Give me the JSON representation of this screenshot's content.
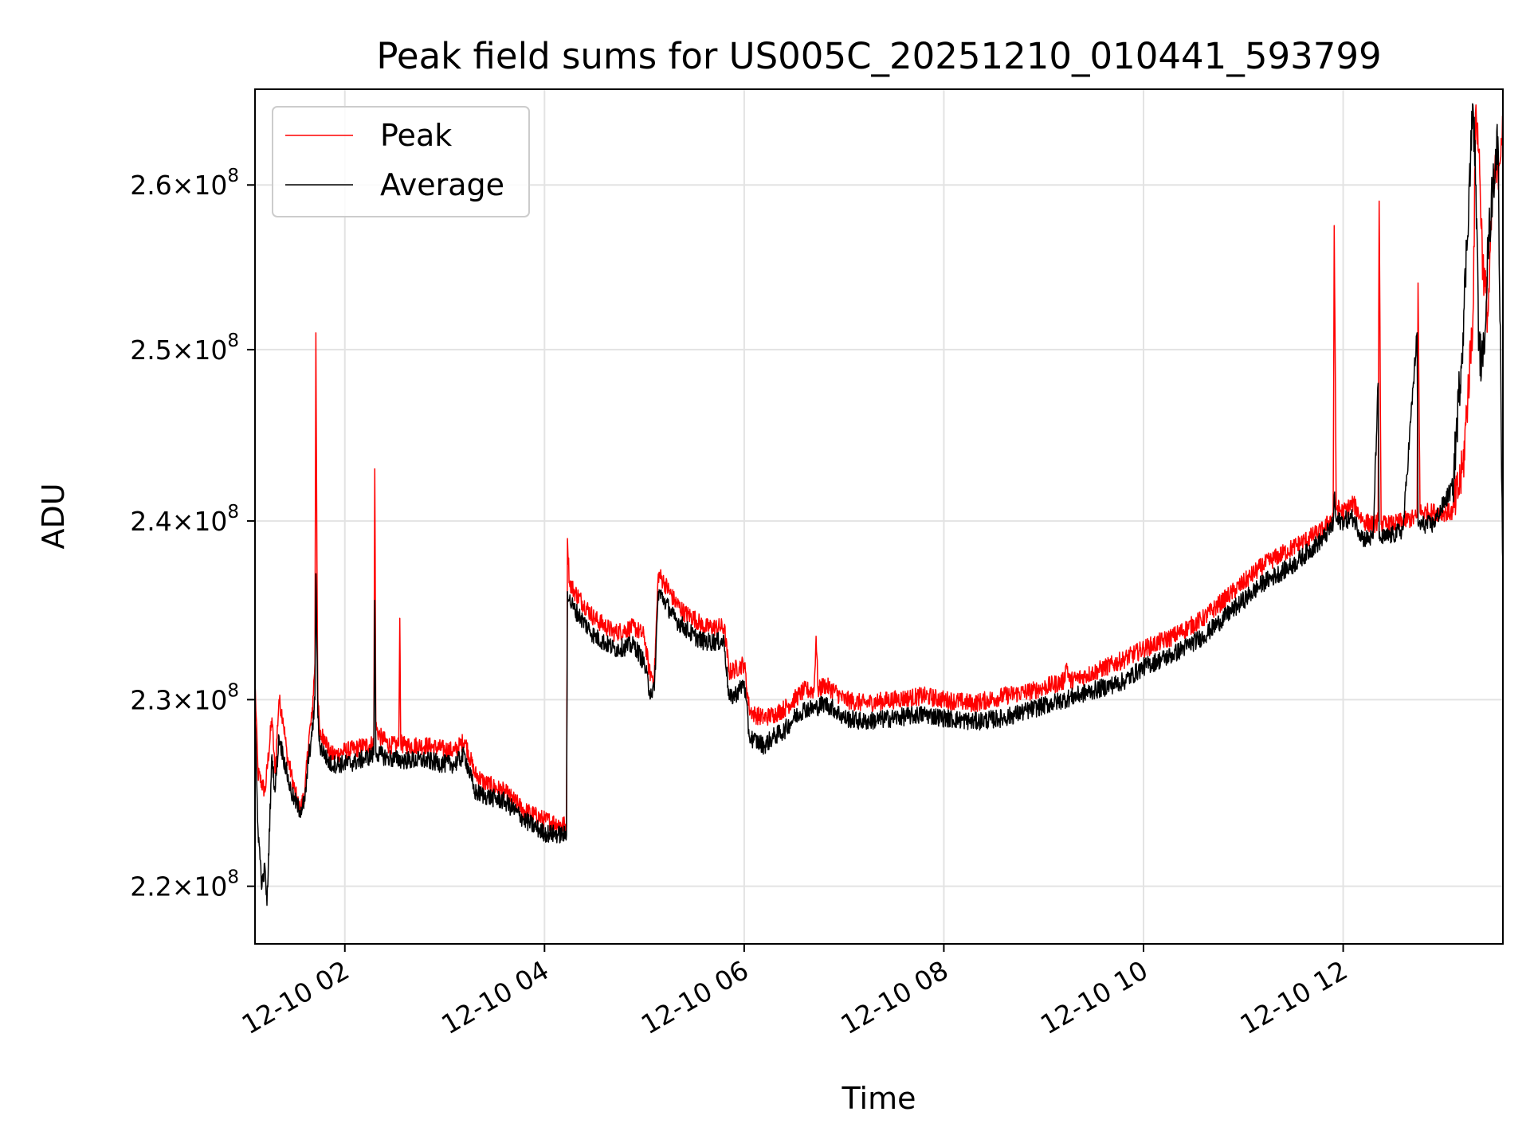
{
  "chart_data": {
    "type": "line",
    "title": "Peak field sums for US005C_20251210_010441_593799",
    "xlabel": "Time",
    "ylabel": "ADU",
    "scale_y": "log",
    "xlim": [
      1.1,
      13.6
    ],
    "ylim": [
      217000000.0,
      266000000.0
    ],
    "grid": true,
    "legend_position": "upper-left",
    "x_ticks": [
      {
        "value": 2,
        "label": "12-10 02"
      },
      {
        "value": 4,
        "label": "12-10 04"
      },
      {
        "value": 6,
        "label": "12-10 06"
      },
      {
        "value": 8,
        "label": "12-10 08"
      },
      {
        "value": 10,
        "label": "12-10 10"
      },
      {
        "value": 12,
        "label": "12-10 12"
      }
    ],
    "y_ticks": [
      {
        "value": 220000000.0,
        "mantissa": "2.2",
        "exp": "8"
      },
      {
        "value": 230000000.0,
        "mantissa": "2.3",
        "exp": "8"
      },
      {
        "value": 240000000.0,
        "mantissa": "2.4",
        "exp": "8"
      },
      {
        "value": 250000000.0,
        "mantissa": "2.5",
        "exp": "8"
      },
      {
        "value": 260000000.0,
        "mantissa": "2.6",
        "exp": "8"
      }
    ],
    "tick_multiplier": "×10",
    "series": [
      {
        "name": "Peak",
        "color": "#ff0000",
        "x": [
          1.1,
          1.13,
          1.2,
          1.27,
          1.3,
          1.34,
          1.38,
          1.42,
          1.46,
          1.5,
          1.55,
          1.6,
          1.64,
          1.67,
          1.7,
          1.71,
          1.72,
          1.73,
          1.75,
          1.8,
          1.85,
          1.9,
          2.0,
          2.1,
          2.2,
          2.29,
          2.3,
          2.31,
          2.35,
          2.45,
          2.54,
          2.55,
          2.56,
          2.6,
          2.8,
          3.0,
          3.1,
          3.2,
          3.3,
          3.4,
          3.6,
          3.8,
          4.0,
          4.22,
          4.23,
          4.25,
          4.3,
          4.5,
          4.7,
          4.9,
          5.0,
          5.05,
          5.1,
          5.14,
          5.2,
          5.3,
          5.4,
          5.5,
          5.6,
          5.8,
          5.85,
          5.95,
          6.0,
          6.05,
          6.1,
          6.2,
          6.3,
          6.4,
          6.5,
          6.6,
          6.7,
          6.72,
          6.74,
          6.8,
          6.9,
          7.0,
          7.2,
          7.5,
          7.8,
          8.0,
          8.3,
          8.6,
          8.9,
          9.2,
          9.23,
          9.26,
          9.5,
          9.8,
          10.0,
          10.3,
          10.6,
          10.9,
          11.2,
          11.5,
          11.8,
          11.9,
          11.91,
          11.93,
          12.0,
          12.1,
          12.2,
          12.3,
          12.35,
          12.36,
          12.38,
          12.5,
          12.6,
          12.74,
          12.75,
          12.77,
          12.9,
          13.1,
          13.2,
          13.3,
          13.33,
          13.36,
          13.4,
          13.45,
          13.5,
          13.55,
          13.6
        ],
        "values": [
          231000000.0,
          226000000.0,
          225000000.0,
          229000000.0,
          226000000.0,
          230000000.0,
          229000000.0,
          227000000.0,
          226000000.0,
          225000000.0,
          224000000.0,
          225000000.0,
          228000000.0,
          229000000.0,
          232000000.0,
          251000000.0,
          238000000.0,
          230000000.0,
          228000000.0,
          228000000.0,
          227000000.0,
          227000000.0,
          227200000.0,
          227300000.0,
          227500000.0,
          227600000.0,
          243000000.0,
          228500000.0,
          228000000.0,
          227500000.0,
          227500000.0,
          234500000.0,
          227600000.0,
          227500000.0,
          227500000.0,
          227300000.0,
          227200000.0,
          227800000.0,
          226000000.0,
          225500000.0,
          225000000.0,
          224000000.0,
          223500000.0,
          223200000.0,
          239000000.0,
          236500000.0,
          236000000.0,
          234500000.0,
          233700000.0,
          234000000.0,
          233500000.0,
          231500000.0,
          231200000.0,
          237000000.0,
          236500000.0,
          235500000.0,
          234800000.0,
          234500000.0,
          234000000.0,
          234000000.0,
          231500000.0,
          231800000.0,
          232000000.0,
          229500000.0,
          229200000.0,
          229000000.0,
          229200000.0,
          229500000.0,
          230000000.0,
          230500000.0,
          230500000.0,
          233500000.0,
          230500000.0,
          230800000.0,
          230500000.0,
          230000000.0,
          229800000.0,
          230000000.0,
          230200000.0,
          230000000.0,
          229800000.0,
          230200000.0,
          230500000.0,
          231000000.0,
          232000000.0,
          231000000.0,
          231500000.0,
          232200000.0,
          232800000.0,
          233500000.0,
          234500000.0,
          236000000.0,
          237500000.0,
          238500000.0,
          239500000.0,
          240300000.0,
          257500000.0,
          240800000.0,
          240500000.0,
          241000000.0,
          240000000.0,
          239800000.0,
          240000000.0,
          259000000.0,
          239800000.0,
          239800000.0,
          240000000.0,
          240200000.0,
          254000000.0,
          240500000.0,
          240500000.0,
          240500000.0,
          243000000.0,
          252000000.0,
          265000000.0,
          262000000.0,
          255000000.0,
          252000000.0,
          260000000.0,
          261000000.0,
          264000000.0
        ],
        "hidden_peak_note": ""
      },
      {
        "name": "Average",
        "color": "#000000",
        "x": [
          1.1,
          1.13,
          1.17,
          1.2,
          1.22,
          1.27,
          1.3,
          1.34,
          1.38,
          1.42,
          1.46,
          1.5,
          1.55,
          1.6,
          1.64,
          1.67,
          1.7,
          1.71,
          1.72,
          1.73,
          1.75,
          1.8,
          1.85,
          1.9,
          2.0,
          2.1,
          2.2,
          2.29,
          2.3,
          2.31,
          2.35,
          2.45,
          2.6,
          2.8,
          3.0,
          3.1,
          3.2,
          3.3,
          3.4,
          3.6,
          3.8,
          4.0,
          4.22,
          4.23,
          4.25,
          4.3,
          4.5,
          4.7,
          4.9,
          5.0,
          5.05,
          5.1,
          5.14,
          5.2,
          5.3,
          5.4,
          5.5,
          5.6,
          5.8,
          5.85,
          5.95,
          6.0,
          6.05,
          6.1,
          6.2,
          6.3,
          6.4,
          6.5,
          6.6,
          6.7,
          6.8,
          6.9,
          7.0,
          7.2,
          7.5,
          7.8,
          8.0,
          8.3,
          8.6,
          8.9,
          9.2,
          9.5,
          9.8,
          10.0,
          10.3,
          10.6,
          10.9,
          11.2,
          11.5,
          11.8,
          11.9,
          11.91,
          11.93,
          12.0,
          12.1,
          12.2,
          12.3,
          12.35,
          12.36,
          12.38,
          12.5,
          12.6,
          12.74,
          12.75,
          12.77,
          12.9,
          13.1,
          13.2,
          13.3,
          13.33,
          13.36,
          13.4,
          13.45,
          13.5,
          13.55,
          13.6
        ],
        "values": [
          229000000.0,
          223000000.0,
          220000000.0,
          221000000.0,
          219000000.0,
          227000000.0,
          225000000.0,
          228000000.0,
          227000000.0,
          226000000.0,
          225000000.0,
          224500000.0,
          224000000.0,
          224500000.0,
          227000000.0,
          228000000.0,
          230000000.0,
          237000000.0,
          233000000.0,
          229000000.0,
          227500000.0,
          227000000.0,
          226500000.0,
          226500000.0,
          226500000.0,
          226600000.0,
          226800000.0,
          227000000.0,
          235500000.0,
          227200000.0,
          227000000.0,
          226800000.0,
          226700000.0,
          226700000.0,
          226500000.0,
          226500000.0,
          227000000.0,
          225000000.0,
          224800000.0,
          224500000.0,
          223500000.0,
          222800000.0,
          222700000.0,
          236000000.0,
          235500000.0,
          235000000.0,
          233500000.0,
          232800000.0,
          233000000.0,
          232000000.0,
          230500000.0,
          230500000.0,
          236000000.0,
          235500000.0,
          234500000.0,
          234000000.0,
          233500000.0,
          233200000.0,
          233200000.0,
          230000000.0,
          230500000.0,
          231000000.0,
          228000000.0,
          227800000.0,
          227500000.0,
          228000000.0,
          228300000.0,
          229000000.0,
          229500000.0,
          229500000.0,
          229800000.0,
          229500000.0,
          229000000.0,
          228800000.0,
          229000000.0,
          229200000.0,
          229000000.0,
          228800000.0,
          229000000.0,
          229500000.0,
          230000000.0,
          230500000.0,
          231000000.0,
          231800000.0,
          232500000.0,
          233500000.0,
          235000000.0,
          236500000.0,
          237500000.0,
          239000000.0,
          239800000.0,
          241500000.0,
          240000000.0,
          240000000.0,
          240200000.0,
          239000000.0,
          239000000.0,
          248000000.0,
          239000000.0,
          239000000.0,
          239200000.0,
          239500000.0,
          251000000.0,
          239800000.0,
          239800000.0,
          239800000.0,
          242000000.0,
          251000000.0,
          265000000.0,
          260000000.0,
          250000000.0,
          249000000.0,
          256000000.0,
          260000000.0,
          263000000.0,
          237500000.0
        ]
      }
    ]
  }
}
